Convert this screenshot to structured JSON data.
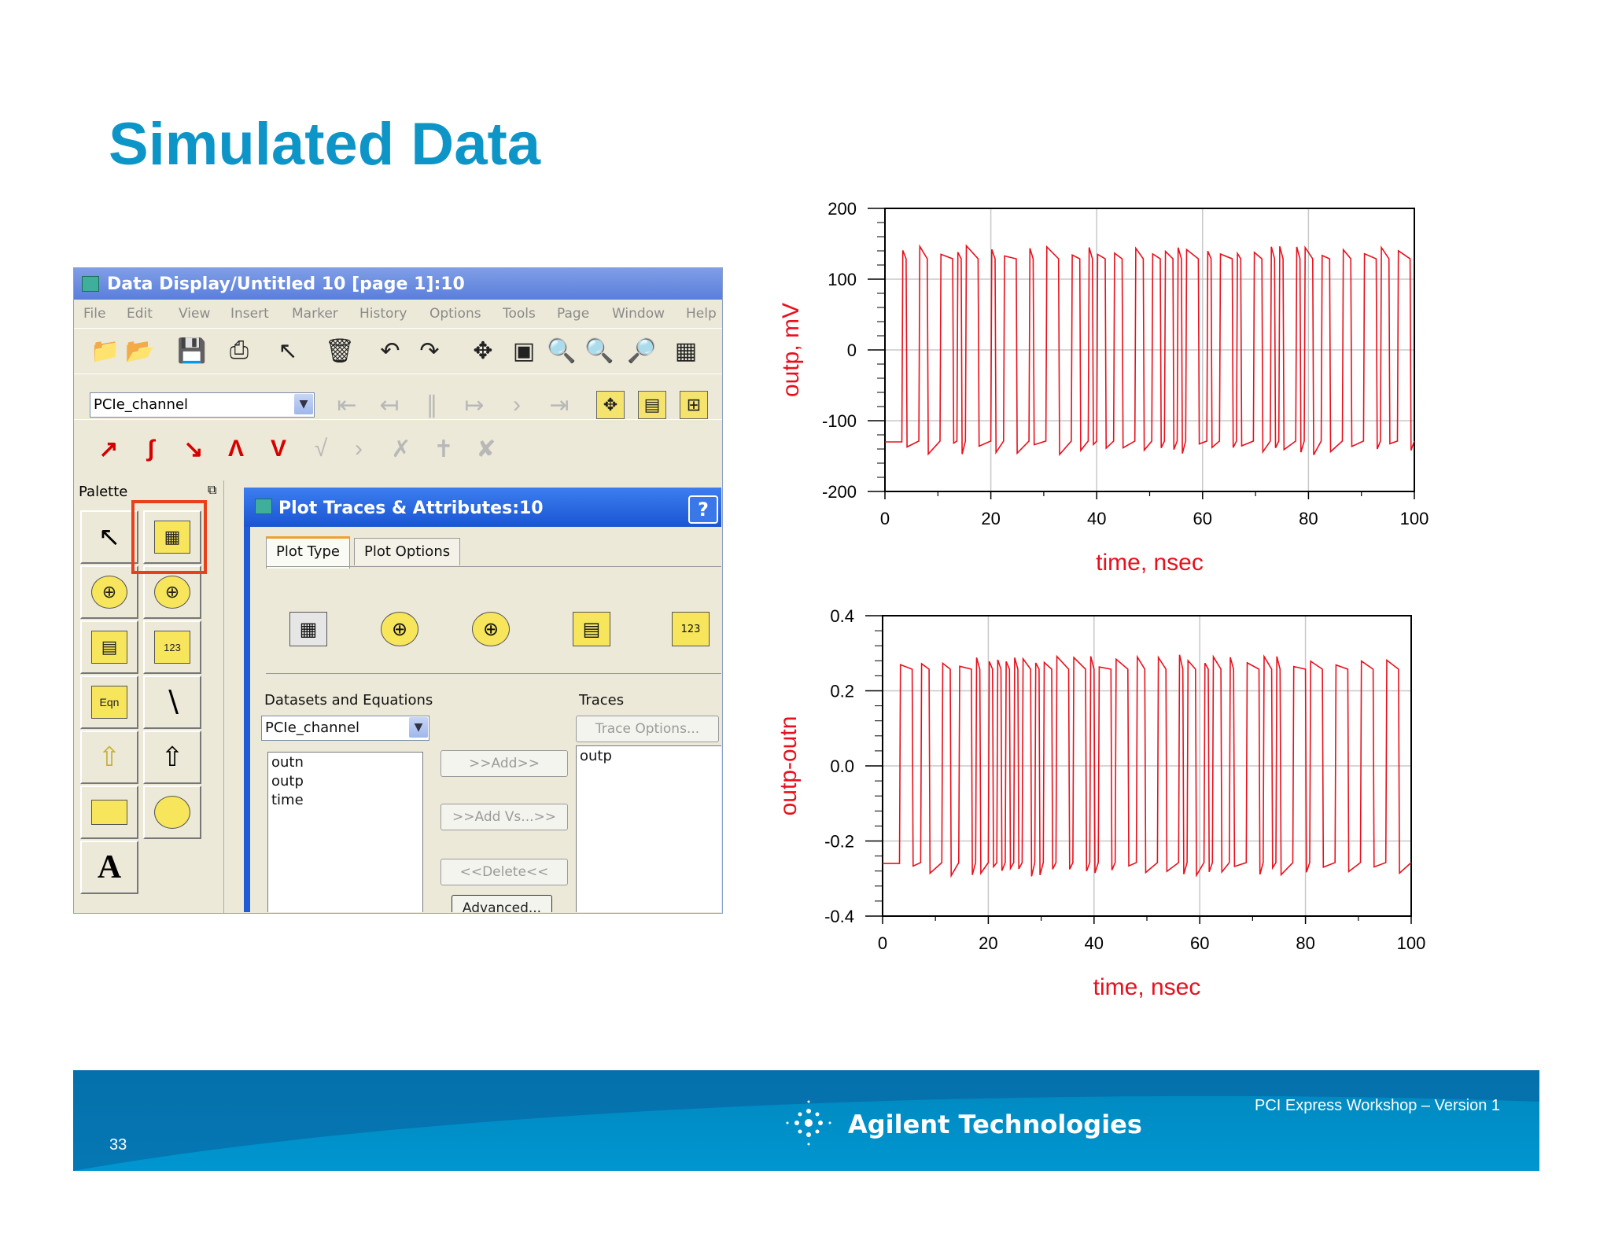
{
  "slide": {
    "title": "Simulated Data",
    "page_number": "33",
    "footer_workshop": "PCI Express Workshop – Version 1",
    "footer_brand": "Agilent Technologies"
  },
  "app": {
    "title": "Data Display/Untitled 10 [page 1]:10",
    "menu": [
      "File",
      "Edit",
      "View",
      "Insert",
      "Marker",
      "History",
      "Options",
      "Tools",
      "Page",
      "Window",
      "Help"
    ],
    "dataset_selected": "PCIe_channel",
    "palette_label": "Palette",
    "palette_text_icon": "A",
    "palette_eqn_icon": "Eqn"
  },
  "dialog": {
    "title": "Plot Traces & Attributes:10",
    "help_label": "?",
    "tabs": [
      "Plot Type",
      "Plot Options"
    ],
    "datasets_label": "Datasets and Equations",
    "traces_label": "Traces",
    "trace_options_label": "Trace Options...",
    "dataset_selected": "PCIe_channel",
    "variables": [
      "outn",
      "outp",
      "time"
    ],
    "traces": [
      "outp"
    ],
    "add_label": ">>Add>>",
    "add_vs_label": ">>Add Vs...>>",
    "delete_label": "<<Delete<<",
    "advanced_label": "Advanced..."
  },
  "colors": {
    "title_blue": "#0e95c8",
    "trace_red": "#e8101c",
    "highlight": "#e8401c",
    "footer_blue": "#008cc4"
  },
  "chart_data": [
    {
      "type": "line",
      "xlabel": "time, nsec",
      "ylabel": "outp, mV",
      "xlim": [
        0,
        100
      ],
      "ylim": [
        -200,
        200
      ],
      "xticks": [
        "0",
        "20",
        "40",
        "60",
        "80",
        "100"
      ],
      "yticks": [
        "-200",
        "-100",
        "0",
        "100",
        "200"
      ],
      "grid": true,
      "series": [
        {
          "description": "NRZ data waveform switching between about -140 and 140 mV, starting near -130 until ~3 ns"
        }
      ]
    },
    {
      "type": "line",
      "xlabel": "time, nsec",
      "ylabel": "outp-outn",
      "xlim": [
        0,
        100
      ],
      "ylim": [
        -0.4,
        0.4
      ],
      "xticks": [
        "0",
        "20",
        "40",
        "60",
        "80",
        "100"
      ],
      "yticks": [
        "-0.4",
        "-0.2",
        "0.0",
        "0.2",
        "0.4"
      ],
      "grid": true,
      "series": [
        {
          "description": "Differential waveform switching between about -0.28 and 0.28, starting near -0.26 until ~3 ns"
        }
      ]
    }
  ]
}
